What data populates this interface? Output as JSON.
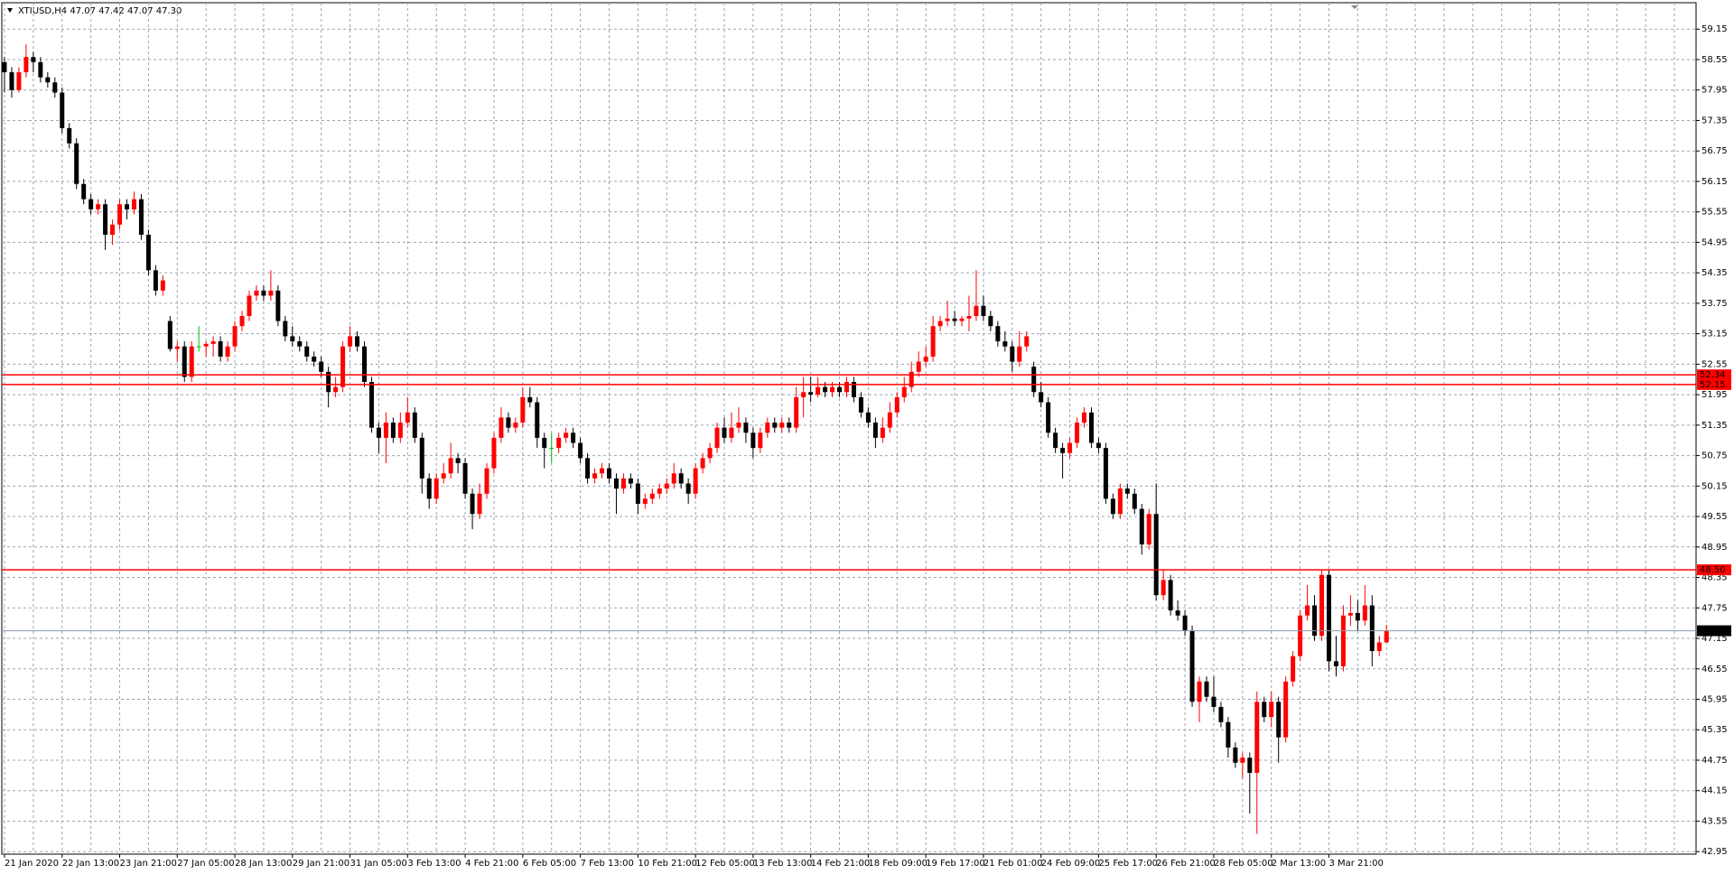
{
  "chart_data": {
    "type": "candlestick",
    "header": "XTIUSD,H4  47.07 47.42 47.07 47.30",
    "colors": {
      "up": "#ff0000",
      "down": "#000000",
      "flat": "#00c000"
    },
    "level_color": "#ff0000",
    "bid_color": "#8a9aa8",
    "grid": true,
    "ylim": [
      42.9,
      59.67
    ],
    "yticks": [
      42.95,
      43.55,
      44.15,
      44.75,
      45.35,
      45.95,
      46.55,
      47.15,
      47.75,
      48.35,
      48.95,
      49.55,
      50.15,
      50.75,
      51.35,
      51.95,
      52.55,
      53.15,
      53.75,
      54.35,
      54.95,
      55.55,
      56.15,
      56.75,
      57.35,
      57.95,
      58.55,
      59.15
    ],
    "levels": [
      52.34,
      52.15,
      {
        "value": 48.5,
        "label": "48.50"
      }
    ],
    "bid": {
      "value": 47.3,
      "label": "47.30"
    },
    "categories": [
      "21 Jan 2020",
      null,
      null,
      null,
      null,
      null,
      null,
      null,
      "22 Jan 13:00",
      null,
      null,
      null,
      null,
      null,
      null,
      null,
      "23 Jan 21:00",
      null,
      null,
      null,
      null,
      null,
      null,
      null,
      "27 Jan 05:00",
      null,
      null,
      null,
      null,
      null,
      null,
      null,
      "28 Jan 13:00",
      null,
      null,
      null,
      null,
      null,
      null,
      null,
      "29 Jan 21:00",
      null,
      null,
      null,
      null,
      null,
      null,
      null,
      "31 Jan 05:00",
      null,
      null,
      null,
      null,
      null,
      null,
      null,
      "3 Feb 13:00",
      null,
      null,
      null,
      null,
      null,
      null,
      null,
      "4 Feb 21:00",
      null,
      null,
      null,
      null,
      null,
      null,
      null,
      "6 Feb 05:00",
      null,
      null,
      null,
      null,
      null,
      null,
      null,
      "7 Feb 13:00",
      null,
      null,
      null,
      null,
      null,
      null,
      null,
      "10 Feb 21:00",
      null,
      null,
      null,
      null,
      null,
      null,
      null,
      "12 Feb 05:00",
      null,
      null,
      null,
      null,
      null,
      null,
      null,
      "13 Feb 13:00",
      null,
      null,
      null,
      null,
      null,
      null,
      null,
      "14 Feb 21:00",
      null,
      null,
      null,
      null,
      null,
      null,
      null,
      "18 Feb 09:00",
      null,
      null,
      null,
      null,
      null,
      null,
      null,
      "19 Feb 17:00",
      null,
      null,
      null,
      null,
      null,
      null,
      null,
      "21 Feb 01:00",
      null,
      null,
      null,
      null,
      null,
      null,
      null,
      "24 Feb 09:00",
      null,
      null,
      null,
      null,
      null,
      null,
      null,
      "25 Feb 17:00",
      null,
      null,
      null,
      null,
      null,
      null,
      null,
      "26 Feb 21:00",
      null,
      null,
      null,
      null,
      null,
      null,
      null,
      "28 Feb 05:00",
      null,
      null,
      null,
      null,
      null,
      null,
      null,
      "2 Mar 13:00",
      null,
      null,
      null,
      null,
      null,
      null,
      null,
      "3 Mar 21:00",
      null,
      null,
      null,
      null,
      null,
      null,
      null,
      null
    ],
    "candles": [
      [
        58.5,
        58.6,
        57.9,
        58.3
      ],
      [
        58.3,
        58.4,
        57.8,
        57.95
      ],
      [
        57.95,
        58.4,
        57.9,
        58.3
      ],
      [
        58.3,
        58.85,
        58.2,
        58.6
      ],
      [
        58.6,
        58.7,
        58.3,
        58.5
      ],
      [
        58.5,
        58.6,
        58.1,
        58.2
      ],
      [
        58.2,
        58.3,
        58.0,
        58.1
      ],
      [
        58.1,
        58.2,
        57.8,
        57.9
      ],
      [
        57.9,
        58.0,
        57.1,
        57.2
      ],
      [
        57.2,
        57.3,
        56.8,
        56.9
      ],
      [
        56.9,
        57.0,
        56.0,
        56.1
      ],
      [
        56.1,
        56.2,
        55.7,
        55.8
      ],
      [
        55.8,
        55.9,
        55.5,
        55.6
      ],
      [
        55.6,
        55.8,
        55.5,
        55.7
      ],
      [
        55.7,
        55.8,
        54.8,
        55.1
      ],
      [
        55.1,
        55.4,
        54.9,
        55.3
      ],
      [
        55.3,
        55.8,
        55.2,
        55.7
      ],
      [
        55.7,
        55.8,
        55.4,
        55.6
      ],
      [
        55.6,
        55.95,
        55.5,
        55.8
      ],
      [
        55.8,
        55.9,
        55.0,
        55.1
      ],
      [
        55.1,
        55.2,
        54.3,
        54.4
      ],
      [
        54.4,
        54.5,
        53.9,
        54.0
      ],
      [
        54.0,
        54.3,
        53.9,
        54.2
      ],
      [
        53.4,
        53.5,
        52.8,
        52.85
      ],
      [
        52.85,
        53.0,
        52.6,
        52.9
      ],
      [
        52.9,
        53.0,
        52.2,
        52.3
      ],
      [
        52.3,
        53.0,
        52.2,
        52.9
      ],
      [
        52.9,
        53.3,
        52.8,
        52.9
      ],
      [
        52.9,
        53.0,
        52.7,
        52.95
      ],
      [
        52.95,
        53.1,
        52.7,
        53.0
      ],
      [
        53.0,
        53.1,
        52.6,
        52.7
      ],
      [
        52.7,
        53.0,
        52.6,
        52.9
      ],
      [
        52.9,
        53.4,
        52.8,
        53.3
      ],
      [
        53.3,
        53.6,
        53.2,
        53.5
      ],
      [
        53.5,
        54.0,
        53.4,
        53.9
      ],
      [
        53.9,
        54.1,
        53.8,
        54.0
      ],
      [
        54.0,
        54.1,
        53.8,
        53.9
      ],
      [
        53.9,
        54.4,
        53.8,
        54.0
      ],
      [
        54.0,
        54.1,
        53.3,
        53.4
      ],
      [
        53.4,
        53.5,
        53.0,
        53.1
      ],
      [
        53.1,
        53.3,
        52.9,
        53.0
      ],
      [
        53.0,
        53.1,
        52.8,
        52.9
      ],
      [
        52.9,
        53.0,
        52.6,
        52.7
      ],
      [
        52.7,
        52.8,
        52.5,
        52.6
      ],
      [
        52.6,
        52.7,
        52.3,
        52.4
      ],
      [
        52.4,
        52.5,
        51.7,
        52.0
      ],
      [
        52.0,
        52.3,
        51.9,
        52.1
      ],
      [
        52.1,
        53.0,
        52.0,
        52.9
      ],
      [
        52.9,
        53.3,
        52.8,
        53.1
      ],
      [
        53.1,
        53.2,
        52.8,
        52.9
      ],
      [
        52.9,
        53.0,
        52.1,
        52.2
      ],
      [
        52.2,
        52.3,
        51.2,
        51.3
      ],
      [
        51.3,
        51.4,
        50.8,
        51.1
      ],
      [
        51.1,
        51.6,
        50.6,
        51.4
      ],
      [
        51.4,
        51.5,
        51.0,
        51.1
      ],
      [
        51.1,
        51.6,
        51.0,
        51.4
      ],
      [
        51.4,
        51.9,
        51.3,
        51.6
      ],
      [
        51.6,
        51.7,
        51.0,
        51.1
      ],
      [
        51.1,
        51.2,
        50.0,
        50.3
      ],
      [
        50.3,
        50.4,
        49.7,
        49.9
      ],
      [
        49.9,
        50.4,
        49.8,
        50.3
      ],
      [
        50.3,
        50.6,
        50.2,
        50.4
      ],
      [
        50.4,
        51.0,
        50.3,
        50.7
      ],
      [
        50.7,
        50.8,
        50.4,
        50.6
      ],
      [
        50.6,
        50.7,
        49.9,
        50.0
      ],
      [
        50.0,
        50.1,
        49.3,
        49.6
      ],
      [
        49.6,
        50.2,
        49.5,
        50.0
      ],
      [
        50.0,
        50.6,
        49.9,
        50.5
      ],
      [
        50.5,
        51.2,
        50.4,
        51.1
      ],
      [
        51.1,
        51.7,
        51.0,
        51.5
      ],
      [
        51.5,
        51.6,
        51.2,
        51.3
      ],
      [
        51.3,
        51.5,
        51.2,
        51.4
      ],
      [
        51.4,
        52.1,
        51.3,
        51.9
      ],
      [
        51.9,
        52.1,
        51.7,
        51.8
      ],
      [
        51.8,
        51.9,
        50.9,
        51.1
      ],
      [
        51.1,
        51.2,
        50.5,
        50.9
      ],
      [
        50.9,
        51.2,
        50.6,
        50.9
      ],
      [
        50.9,
        51.2,
        50.8,
        51.1
      ],
      [
        51.1,
        51.3,
        51.0,
        51.2
      ],
      [
        51.2,
        51.3,
        50.9,
        51.0
      ],
      [
        51.0,
        51.1,
        50.6,
        50.7
      ],
      [
        50.7,
        50.8,
        50.2,
        50.3
      ],
      [
        50.3,
        50.5,
        50.2,
        50.4
      ],
      [
        50.4,
        50.6,
        50.3,
        50.5
      ],
      [
        50.5,
        50.6,
        50.2,
        50.3
      ],
      [
        50.3,
        50.4,
        49.6,
        50.1
      ],
      [
        50.1,
        50.4,
        50.0,
        50.3
      ],
      [
        50.3,
        50.4,
        50.1,
        50.2
      ],
      [
        50.2,
        50.3,
        49.6,
        49.8
      ],
      [
        49.8,
        50.0,
        49.7,
        49.9
      ],
      [
        49.9,
        50.1,
        49.8,
        50.0
      ],
      [
        50.0,
        50.2,
        49.9,
        50.1
      ],
      [
        50.1,
        50.3,
        50.0,
        50.2
      ],
      [
        50.2,
        50.6,
        50.1,
        50.4
      ],
      [
        50.4,
        50.5,
        50.1,
        50.2
      ],
      [
        50.2,
        50.3,
        49.8,
        50.0
      ],
      [
        50.0,
        50.6,
        49.9,
        50.5
      ],
      [
        50.5,
        50.8,
        50.4,
        50.7
      ],
      [
        50.7,
        51.0,
        50.6,
        50.9
      ],
      [
        50.9,
        51.4,
        50.8,
        51.3
      ],
      [
        51.3,
        51.5,
        51.0,
        51.1
      ],
      [
        51.1,
        51.6,
        51.0,
        51.3
      ],
      [
        51.3,
        51.7,
        51.2,
        51.4
      ],
      [
        51.4,
        51.5,
        51.0,
        51.2
      ],
      [
        51.2,
        51.3,
        50.7,
        50.9
      ],
      [
        50.9,
        51.3,
        50.8,
        51.2
      ],
      [
        51.2,
        51.5,
        51.1,
        51.4
      ],
      [
        51.4,
        51.5,
        51.2,
        51.3
      ],
      [
        51.3,
        51.5,
        51.2,
        51.4
      ],
      [
        51.4,
        51.5,
        51.2,
        51.3
      ],
      [
        51.3,
        52.1,
        51.2,
        51.9
      ],
      [
        51.9,
        52.3,
        51.5,
        52.0
      ],
      [
        52.0,
        52.3,
        51.8,
        51.95
      ],
      [
        51.95,
        52.3,
        51.9,
        52.1
      ],
      [
        52.1,
        52.2,
        51.9,
        52.0
      ],
      [
        52.0,
        52.2,
        51.9,
        52.1
      ],
      [
        52.1,
        52.2,
        51.9,
        52.0
      ],
      [
        52.0,
        52.3,
        51.9,
        52.2
      ],
      [
        52.2,
        52.3,
        51.8,
        51.9
      ],
      [
        51.9,
        52.0,
        51.5,
        51.6
      ],
      [
        51.6,
        51.7,
        51.3,
        51.4
      ],
      [
        51.4,
        51.5,
        50.9,
        51.1
      ],
      [
        51.1,
        51.5,
        51.0,
        51.3
      ],
      [
        51.3,
        51.8,
        51.2,
        51.6
      ],
      [
        51.6,
        52.0,
        51.5,
        51.9
      ],
      [
        51.9,
        52.3,
        51.8,
        52.1
      ],
      [
        52.1,
        52.6,
        52.0,
        52.4
      ],
      [
        52.4,
        52.8,
        52.3,
        52.6
      ],
      [
        52.6,
        52.9,
        52.5,
        52.7
      ],
      [
        52.7,
        53.5,
        52.6,
        53.3
      ],
      [
        53.3,
        53.5,
        53.2,
        53.4
      ],
      [
        53.4,
        53.8,
        53.3,
        53.45
      ],
      [
        53.45,
        53.6,
        53.3,
        53.4
      ],
      [
        53.4,
        53.5,
        53.3,
        53.45
      ],
      [
        53.45,
        53.9,
        53.2,
        53.5
      ],
      [
        53.5,
        54.4,
        53.4,
        53.7
      ],
      [
        53.7,
        53.9,
        53.4,
        53.5
      ],
      [
        53.5,
        53.6,
        53.2,
        53.3
      ],
      [
        53.3,
        53.4,
        52.9,
        53.0
      ],
      [
        53.0,
        53.2,
        52.8,
        52.9
      ],
      [
        52.9,
        53.0,
        52.4,
        52.6
      ],
      [
        52.6,
        53.2,
        52.5,
        52.9
      ],
      [
        52.9,
        53.2,
        52.8,
        53.1
      ],
      [
        52.5,
        52.6,
        51.9,
        52.0
      ],
      [
        52.0,
        52.2,
        51.7,
        51.8
      ],
      [
        51.8,
        51.9,
        51.1,
        51.2
      ],
      [
        51.2,
        51.3,
        50.8,
        50.9
      ],
      [
        50.9,
        51.0,
        50.3,
        50.8
      ],
      [
        50.8,
        51.1,
        50.7,
        51.0
      ],
      [
        51.0,
        51.5,
        50.9,
        51.4
      ],
      [
        51.4,
        51.7,
        51.3,
        51.6
      ],
      [
        51.6,
        51.7,
        50.9,
        51.0
      ],
      [
        51.0,
        51.1,
        50.8,
        50.9
      ],
      [
        50.9,
        51.0,
        49.8,
        49.9
      ],
      [
        49.9,
        50.0,
        49.5,
        49.6
      ],
      [
        49.6,
        50.2,
        49.5,
        50.1
      ],
      [
        50.1,
        50.2,
        49.9,
        50.0
      ],
      [
        50.0,
        50.1,
        49.6,
        49.7
      ],
      [
        49.7,
        49.8,
        48.8,
        49.0
      ],
      [
        49.0,
        49.7,
        48.9,
        49.6
      ],
      [
        49.6,
        50.2,
        47.9,
        48.0
      ],
      [
        48.0,
        48.5,
        47.9,
        48.3
      ],
      [
        48.3,
        48.4,
        47.6,
        47.7
      ],
      [
        47.7,
        47.9,
        47.5,
        47.6
      ],
      [
        47.6,
        47.7,
        47.2,
        47.3
      ],
      [
        47.3,
        47.4,
        45.8,
        45.9
      ],
      [
        45.9,
        46.4,
        45.5,
        46.3
      ],
      [
        46.3,
        46.4,
        45.9,
        46.0
      ],
      [
        46.0,
        46.4,
        45.7,
        45.8
      ],
      [
        45.8,
        45.9,
        45.4,
        45.5
      ],
      [
        45.5,
        45.6,
        44.8,
        45.0
      ],
      [
        45.0,
        45.1,
        44.6,
        44.7
      ],
      [
        44.7,
        44.9,
        44.4,
        44.8
      ],
      [
        44.8,
        44.9,
        43.7,
        44.5
      ],
      [
        44.5,
        46.1,
        43.3,
        45.9
      ],
      [
        45.9,
        46.0,
        45.5,
        45.6
      ],
      [
        45.6,
        46.1,
        45.4,
        45.9
      ],
      [
        45.9,
        46.0,
        44.7,
        45.2
      ],
      [
        45.2,
        46.4,
        45.1,
        46.3
      ],
      [
        46.3,
        46.9,
        46.2,
        46.8
      ],
      [
        46.8,
        47.7,
        46.7,
        47.6
      ],
      [
        47.6,
        48.2,
        47.5,
        47.8
      ],
      [
        47.8,
        48.0,
        47.1,
        47.2
      ],
      [
        47.2,
        48.5,
        47.1,
        48.4
      ],
      [
        48.4,
        48.5,
        46.5,
        46.7
      ],
      [
        46.7,
        47.2,
        46.4,
        46.6
      ],
      [
        46.6,
        47.8,
        46.5,
        47.6
      ],
      [
        47.6,
        48.0,
        47.4,
        47.65
      ],
      [
        47.65,
        47.9,
        47.3,
        47.5
      ],
      [
        47.5,
        48.2,
        47.4,
        47.8
      ],
      [
        47.8,
        48.0,
        46.6,
        46.9
      ],
      [
        46.9,
        47.2,
        46.8,
        47.07
      ],
      [
        47.07,
        47.42,
        47.07,
        47.3
      ]
    ]
  }
}
